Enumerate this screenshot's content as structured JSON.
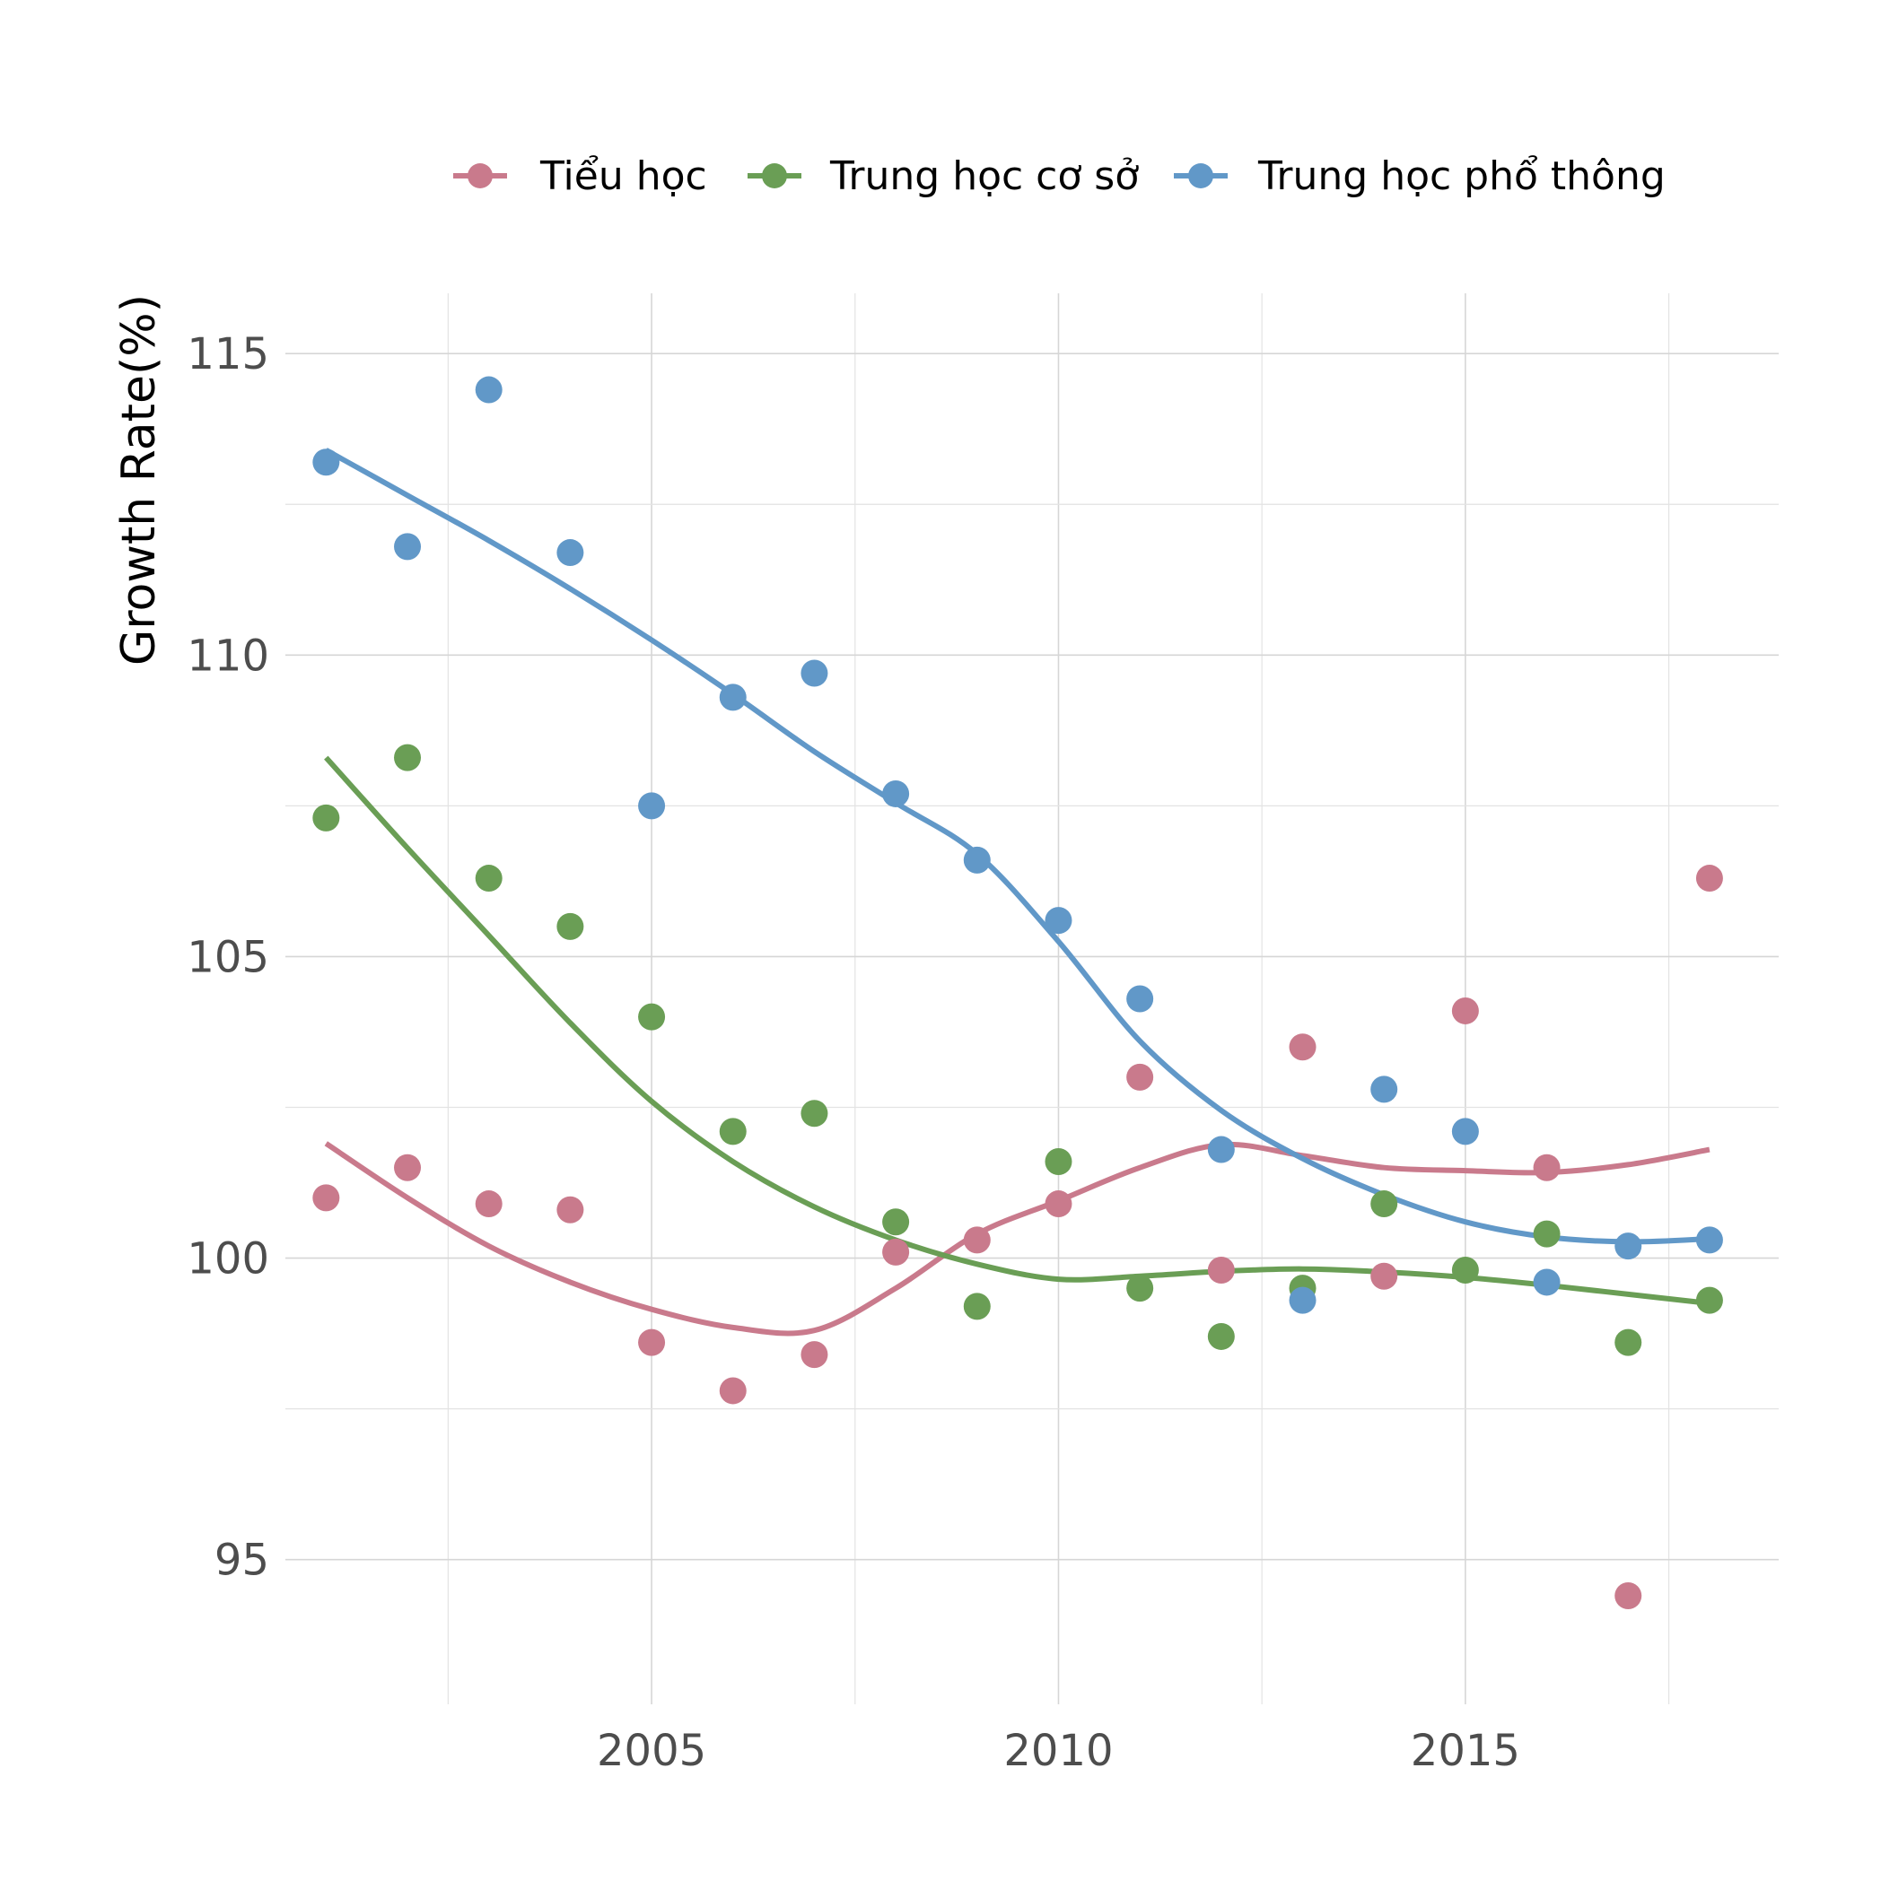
{
  "chart_data": {
    "type": "scatter",
    "title": "",
    "xlabel": "",
    "ylabel": "Growth Rate(%)",
    "xlim": [
      2000.5,
      2018.85
    ],
    "ylim": [
      92.6,
      116.0
    ],
    "x_ticks": [
      2005,
      2010,
      2015
    ],
    "x_tick_labels": [
      "2005",
      "2010",
      "2015"
    ],
    "y_ticks": [
      95,
      100,
      105,
      110,
      115
    ],
    "y_tick_labels": [
      "95",
      "100",
      "105",
      "110",
      "115"
    ],
    "grid": true,
    "legend_position": "top",
    "x": [
      2001,
      2002,
      2003,
      2004,
      2005,
      2006,
      2007,
      2008,
      2009,
      2010,
      2011,
      2012,
      2013,
      2014,
      2015,
      2016,
      2017,
      2018
    ],
    "series": [
      {
        "name": "Tiểu học",
        "color": "#c97a8c",
        "values": [
          101.0,
          101.5,
          100.9,
          100.8,
          98.6,
          97.8,
          98.4,
          100.1,
          100.3,
          100.9,
          103.0,
          99.8,
          103.5,
          99.7,
          104.1,
          101.5,
          94.4,
          106.3
        ],
        "smooth": [
          101.9,
          101.0,
          100.2,
          99.6,
          99.15,
          98.85,
          98.8,
          99.5,
          100.4,
          100.95,
          101.5,
          101.88,
          101.7,
          101.5,
          101.45,
          101.42,
          101.55,
          101.8
        ]
      },
      {
        "name": "Trung học cơ sở",
        "color": "#6a9e55",
        "values": [
          107.3,
          108.3,
          106.3,
          105.5,
          104.0,
          102.1,
          102.4,
          100.6,
          99.2,
          101.6,
          99.5,
          98.7,
          99.5,
          100.9,
          99.8,
          100.4,
          98.6,
          99.3
        ],
        "smooth": [
          108.3,
          106.8,
          105.35,
          103.9,
          102.6,
          101.6,
          100.85,
          100.3,
          99.9,
          99.65,
          99.7,
          99.78,
          99.82,
          99.77,
          99.68,
          99.55,
          99.4,
          99.25
        ]
      },
      {
        "name": "Trung học phổ thông",
        "color": "#6198c8",
        "values": [
          113.2,
          111.8,
          114.4,
          111.7,
          107.5,
          109.3,
          109.7,
          107.7,
          106.6,
          105.6,
          104.3,
          101.8,
          99.3,
          102.8,
          102.1,
          99.6,
          100.2,
          100.3
        ],
        "smooth": [
          113.4,
          112.65,
          111.9,
          111.1,
          110.25,
          109.35,
          108.4,
          107.55,
          106.7,
          105.25,
          103.6,
          102.45,
          101.65,
          101.05,
          100.6,
          100.35,
          100.27,
          100.32
        ]
      }
    ]
  }
}
